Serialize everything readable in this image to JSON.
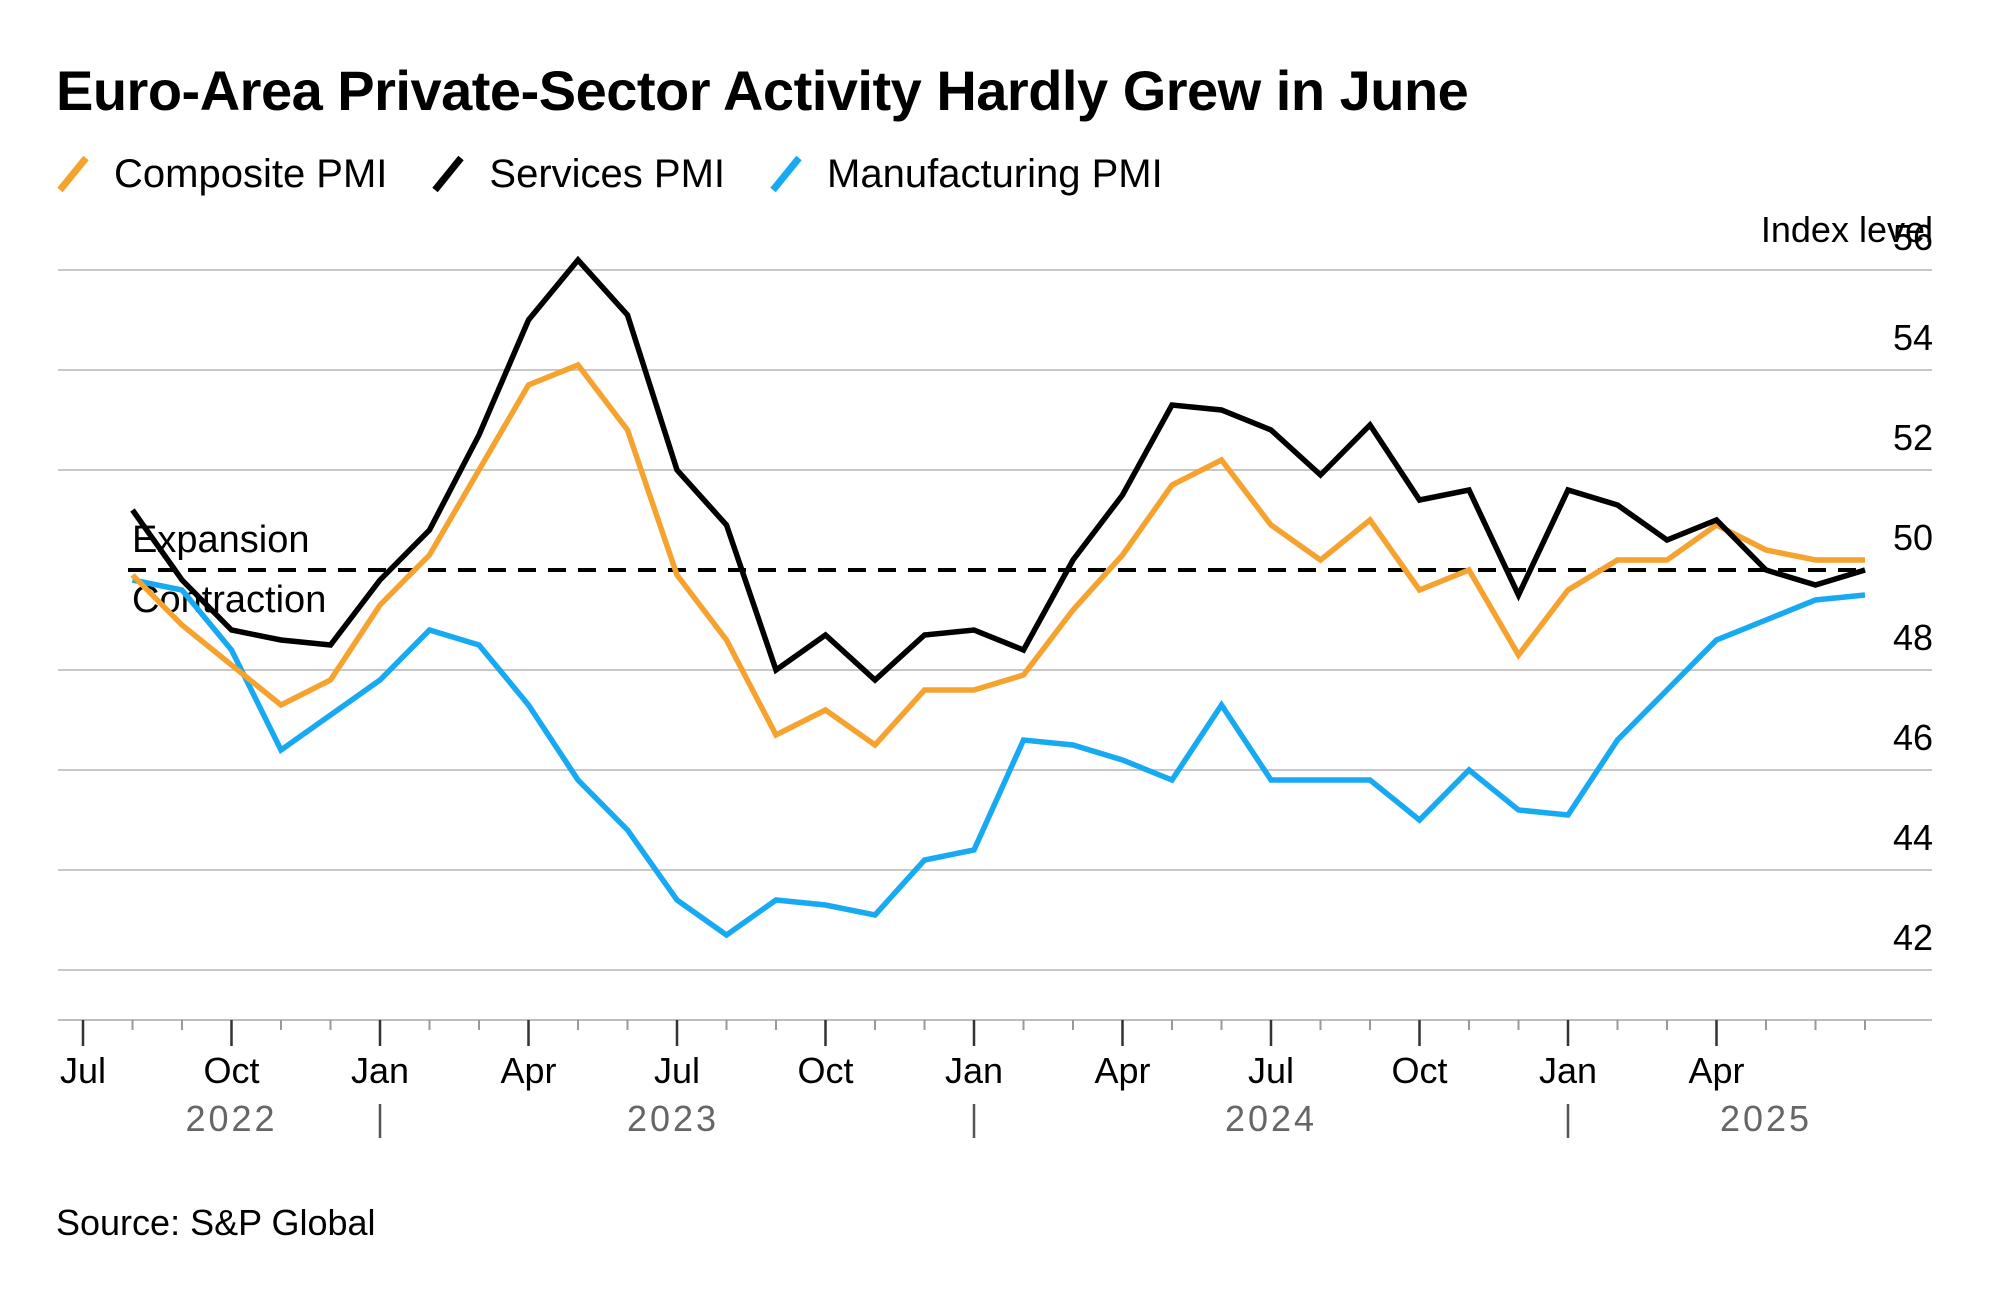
{
  "title": "Euro-Area Private-Sector Activity Hardly Grew in June",
  "source": "Source: S&P Global",
  "colors": {
    "composite": "#f5a22f",
    "services": "#000000",
    "manufacturing": "#17aaf2",
    "grid": "#c8c8c8",
    "axis": "#555555"
  },
  "chart_data": {
    "type": "line",
    "ylabel": "Index level",
    "ylim": [
      41,
      56
    ],
    "y_ticks": [
      42,
      44,
      46,
      48,
      50,
      52,
      54,
      56
    ],
    "reference_line": {
      "value": 50,
      "style": "dashed",
      "label_above": "Expansion",
      "label_below": "Contraction"
    },
    "x": [
      "2022-07",
      "2022-08",
      "2022-09",
      "2022-10",
      "2022-11",
      "2022-12",
      "2023-01",
      "2023-02",
      "2023-03",
      "2023-04",
      "2023-05",
      "2023-06",
      "2023-07",
      "2023-08",
      "2023-09",
      "2023-10",
      "2023-11",
      "2023-12",
      "2024-01",
      "2024-02",
      "2024-03",
      "2024-04",
      "2024-05",
      "2024-06",
      "2024-07",
      "2024-08",
      "2024-09",
      "2024-10",
      "2024-11",
      "2024-12",
      "2025-01",
      "2025-02",
      "2025-03",
      "2025-04",
      "2025-05",
      "2025-06"
    ],
    "x_tick_labels": [
      {
        "month": "2022-06",
        "label": "Jul"
      },
      {
        "month": "2022-09",
        "label": "Oct"
      },
      {
        "month": "2022-12",
        "label": "Jan"
      },
      {
        "month": "2023-03",
        "label": "Apr"
      },
      {
        "month": "2023-06",
        "label": "Jul"
      },
      {
        "month": "2023-09",
        "label": "Oct"
      },
      {
        "month": "2023-12",
        "label": "Jan"
      },
      {
        "month": "2024-03",
        "label": "Apr"
      },
      {
        "month": "2024-06",
        "label": "Jul"
      },
      {
        "month": "2024-09",
        "label": "Oct"
      },
      {
        "month": "2024-12",
        "label": "Jan"
      },
      {
        "month": "2025-03",
        "label": "Apr"
      }
    ],
    "year_labels": [
      {
        "month": "2022-09",
        "label": "2022"
      },
      {
        "month": "2023-06",
        "label": "2023"
      },
      {
        "month": "2024-06",
        "label": "2024"
      },
      {
        "month": "2025-04",
        "label": "2025"
      }
    ],
    "year_separators": [
      "2022-12",
      "2023-12",
      "2024-12"
    ],
    "series": [
      {
        "name": "Composite PMI",
        "color_key": "composite",
        "values": [
          49.9,
          48.9,
          48.1,
          47.3,
          47.8,
          49.3,
          50.3,
          52.0,
          53.7,
          54.1,
          52.8,
          49.9,
          48.6,
          46.7,
          47.2,
          46.5,
          47.6,
          47.6,
          47.9,
          49.2,
          50.3,
          51.7,
          52.2,
          50.9,
          50.2,
          51.0,
          49.6,
          50.0,
          48.3,
          49.6,
          50.2,
          50.2,
          50.9,
          50.4,
          50.2,
          50.2
        ]
      },
      {
        "name": "Services PMI",
        "color_key": "services",
        "values": [
          51.2,
          49.8,
          48.8,
          48.6,
          48.5,
          49.8,
          50.8,
          52.7,
          55.0,
          56.2,
          55.1,
          52.0,
          50.9,
          48.0,
          48.7,
          47.8,
          48.7,
          48.8,
          48.4,
          50.2,
          51.5,
          53.3,
          53.2,
          52.8,
          51.9,
          52.9,
          51.4,
          51.6,
          49.5,
          51.6,
          51.3,
          50.6,
          51.0,
          50.0,
          49.7,
          50.0
        ]
      },
      {
        "name": "Manufacturing PMI",
        "color_key": "manufacturing",
        "values": [
          49.8,
          49.6,
          48.4,
          46.4,
          47.1,
          47.8,
          48.8,
          48.5,
          47.3,
          45.8,
          44.8,
          43.4,
          42.7,
          43.4,
          43.3,
          43.1,
          44.2,
          44.4,
          46.6,
          46.5,
          46.2,
          45.8,
          47.3,
          45.8,
          45.8,
          45.8,
          45.0,
          46.0,
          45.2,
          45.1,
          46.6,
          47.6,
          48.6,
          49.0,
          49.4,
          49.5
        ]
      }
    ]
  }
}
